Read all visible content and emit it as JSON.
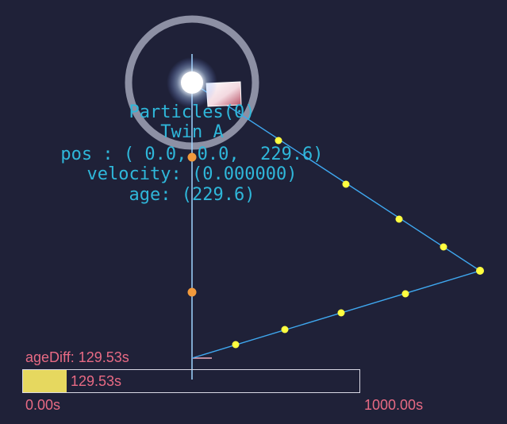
{
  "particle_info": {
    "title": "Particles(0)",
    "name": "Twin A",
    "pos": "pos : ( 0.0, 0.0,  229.6)",
    "velocity": "velocity: (0.000000)",
    "age": "age: (229.6)"
  },
  "age_diff": {
    "label": "ageDiff: 129.53s",
    "bar_value_text": "129.53s",
    "fraction": 0.12953,
    "min_label": "0.00s",
    "max_label": "1000.00s"
  },
  "colors": {
    "background": "#1f2138",
    "text_cyan": "#2fb7da",
    "hud_pink": "#e86a84",
    "bar_fill": "#e6d85f",
    "worldline_point": "#ffff40",
    "event_point": "#f29a3c",
    "path_line": "#40b0ff",
    "axis_line": "#9fd6ff"
  }
}
